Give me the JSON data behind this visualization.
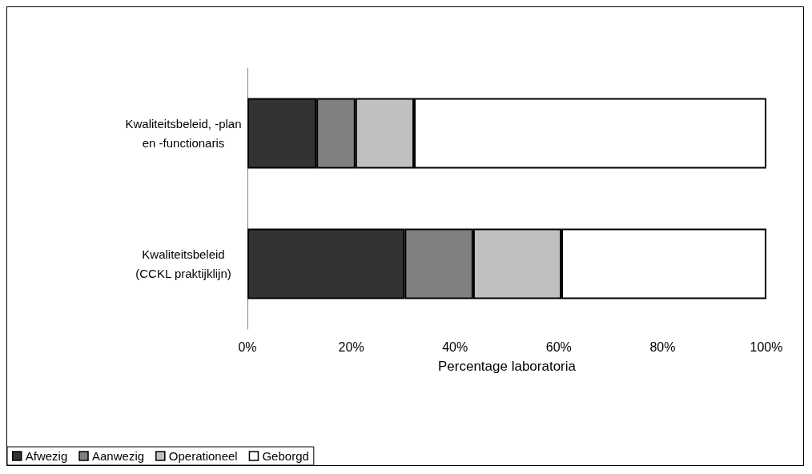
{
  "chart_data": {
    "type": "bar",
    "orientation": "horizontal",
    "stacked": true,
    "xlabel": "Percentage laboratoria",
    "categories": [
      "Kwaliteitsbeleid, -plan\nen -functionaris",
      "Kwaliteitsbeleid\n(CCKL praktijklijn)"
    ],
    "series": [
      {
        "name": "Afwezig",
        "color": "#333333",
        "values": [
          13.3,
          30.3
        ]
      },
      {
        "name": "Aanwezig",
        "color": "#808080",
        "values": [
          7.5,
          13.2
        ]
      },
      {
        "name": "Operationeel",
        "color": "#c0c0c0",
        "values": [
          11.3,
          17.0
        ]
      },
      {
        "name": "Geborgd",
        "color": "#ffffff",
        "values": [
          67.9,
          39.5
        ]
      }
    ],
    "xlim": [
      0,
      100
    ],
    "xticks": [
      {
        "value": 0,
        "label": "0%"
      },
      {
        "value": 20,
        "label": "20%"
      },
      {
        "value": 40,
        "label": "40%"
      },
      {
        "value": 60,
        "label": "60%"
      },
      {
        "value": 80,
        "label": "80%"
      },
      {
        "value": 100,
        "label": "100%"
      }
    ],
    "grid": false,
    "legend": "bottom left"
  }
}
